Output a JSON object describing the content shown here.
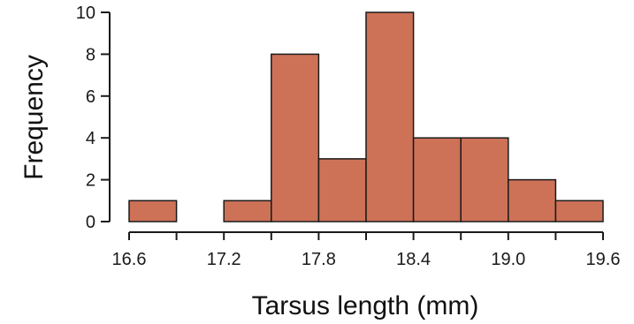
{
  "chart_data": {
    "type": "bar",
    "subtype": "histogram",
    "title": "",
    "xlabel": "Tarsus length (mm)",
    "ylabel": "Frequency",
    "bin_edges": [
      16.6,
      16.9,
      17.2,
      17.5,
      17.8,
      18.1,
      18.4,
      18.7,
      19.0,
      19.3,
      19.6
    ],
    "values": [
      1,
      0,
      1,
      8,
      3,
      10,
      4,
      4,
      2,
      1
    ],
    "xlim": [
      16.6,
      19.6
    ],
    "ylim": [
      0,
      10
    ],
    "x_ticks": [
      "16.6",
      "17.2",
      "17.8",
      "18.4",
      "19.0",
      "19.6"
    ],
    "y_ticks": [
      "0",
      "2",
      "4",
      "6",
      "8",
      "10"
    ],
    "bar_color": "#cd7257",
    "grid": false,
    "legend": "none"
  }
}
